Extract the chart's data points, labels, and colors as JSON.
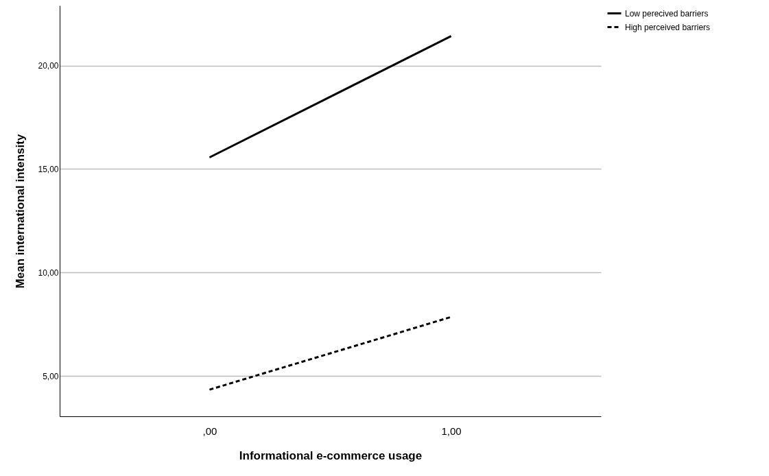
{
  "chart_data": {
    "type": "line",
    "xlabel": "Informational e-commerce usage",
    "ylabel": "Mean international intensity",
    "categories": [
      ",00",
      "1,00"
    ],
    "series": [
      {
        "name": "Low perecived barriers",
        "color": "#000000",
        "line_style": "solid",
        "values": [
          15.56,
          21.42
        ]
      },
      {
        "name": "High perceived barriers",
        "color": "#000000",
        "line_style": "dashed",
        "values": [
          4.34,
          7.85
        ]
      }
    ],
    "ylim": [
      3.05,
      22.9
    ],
    "yticks": [
      {
        "value": 5,
        "label": "5,00"
      },
      {
        "value": 10,
        "label": "10,00"
      },
      {
        "value": 15,
        "label": "15,00"
      },
      {
        "value": 20,
        "label": "20,00"
      }
    ],
    "grid": "y",
    "legend": "top right",
    "marker": "none"
  }
}
